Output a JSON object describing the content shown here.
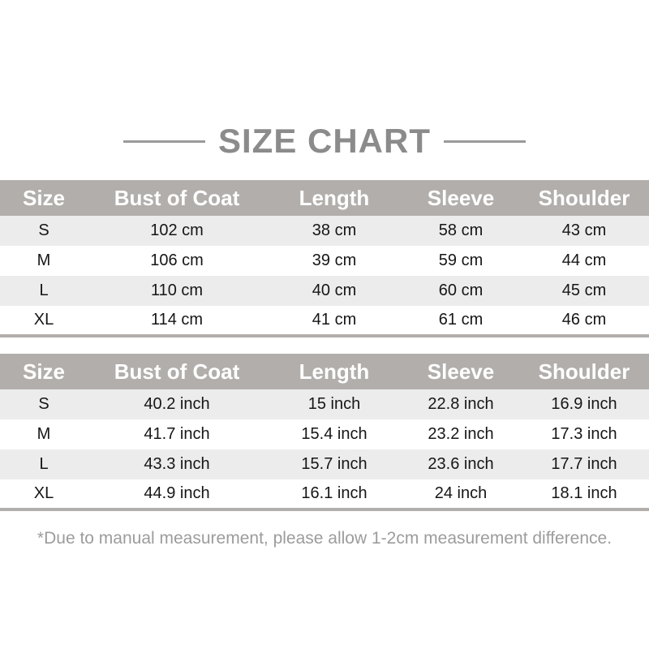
{
  "title": "SIZE CHART",
  "footnote": "*Due to manual measurement, please allow 1-2cm measurement difference.",
  "colors": {
    "header-bg": "#b2aeab",
    "row-alt": "#ececec",
    "title-color": "#8b8b8b",
    "rule-color": "#9a9a9a",
    "note-color": "#9c9c9c",
    "data-color": "#161616"
  },
  "columns": [
    "Size",
    "Bust of Coat",
    "Length",
    "Sleeve",
    "Shoulder"
  ],
  "tables": [
    {
      "unit": "cm",
      "rows": [
        [
          "S",
          "102 cm",
          "38 cm",
          "58 cm",
          "43 cm"
        ],
        [
          "M",
          "106 cm",
          "39 cm",
          "59 cm",
          "44 cm"
        ],
        [
          "L",
          "110 cm",
          "40 cm",
          "60 cm",
          "45 cm"
        ],
        [
          "XL",
          "114 cm",
          "41 cm",
          "61 cm",
          "46 cm"
        ]
      ]
    },
    {
      "unit": "inch",
      "rows": [
        [
          "S",
          "40.2 inch",
          "15 inch",
          "22.8 inch",
          "16.9 inch"
        ],
        [
          "M",
          "41.7 inch",
          "15.4 inch",
          "23.2 inch",
          "17.3 inch"
        ],
        [
          "L",
          "43.3 inch",
          "15.7 inch",
          "23.6 inch",
          "17.7 inch"
        ],
        [
          "XL",
          "44.9 inch",
          "16.1 inch",
          "24 inch",
          "18.1 inch"
        ]
      ]
    }
  ]
}
